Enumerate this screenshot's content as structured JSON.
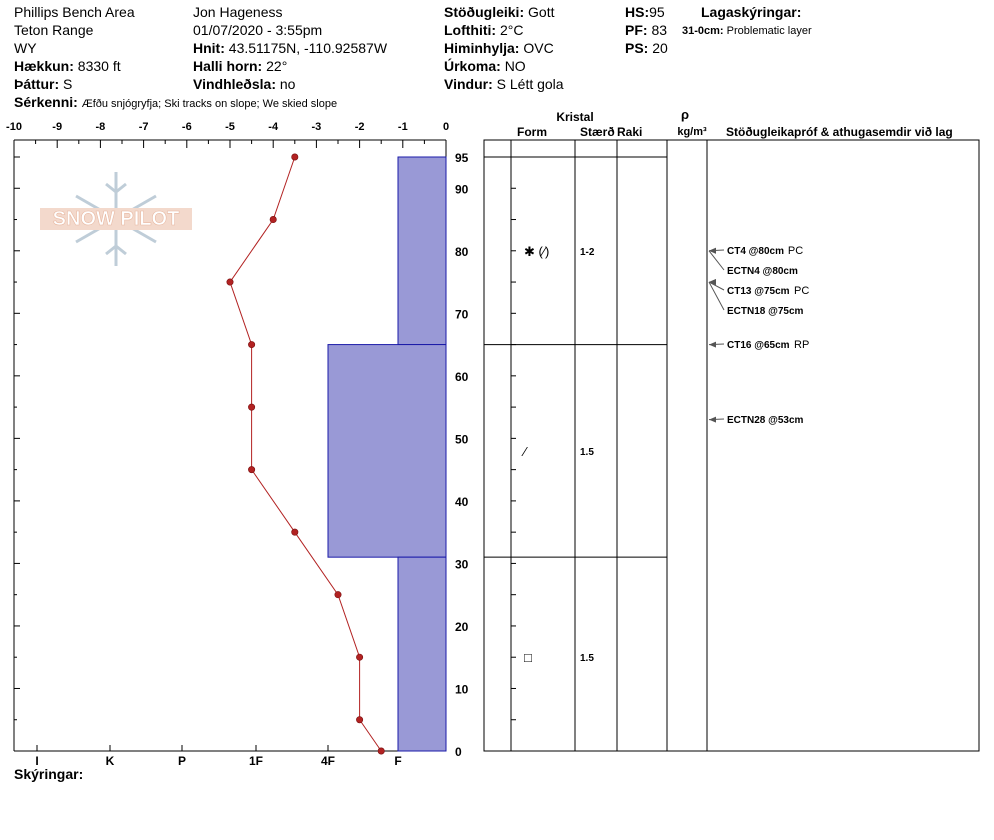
{
  "header": {
    "col1": {
      "location": "Phillips Bench Area",
      "range": "Teton Range",
      "state": "WY",
      "elevation_label": "Hækkun:",
      "elevation_value": "8330 ft",
      "aspect_label": "Þáttur:",
      "aspect_value": "S",
      "features_label": "Sérkenni:",
      "features_value": "Æfðu snjógryfja;  Ski tracks on slope;  We skied slope"
    },
    "col2": {
      "observer": "Jon Hageness",
      "datetime": "01/07/2020 - 3:55pm",
      "coords_label": "Hnit:",
      "coords_value": "43.51175N, -110.92587W",
      "slope_label": "Halli horn:",
      "slope_value": "22°",
      "wind_loading_label": "Vindhleðsla:",
      "wind_loading_value": "no"
    },
    "col3": {
      "stability_label": "Stöðugleiki:",
      "stability_value": "Gott",
      "air_temp_label": "Lofthiti:",
      "air_temp_value": "2°C",
      "sky_label": "Himinhylja:",
      "sky_value": "OVC",
      "precip_label": "Úrkoma:",
      "precip_value": "NO",
      "wind_label": "Vindur:",
      "wind_value": "S  Létt gola"
    },
    "col4": {
      "hs_label": "HS:",
      "hs_value": "95",
      "pf_label": "PF:",
      "pf_value": "83",
      "ps_label": "PS:",
      "ps_value": "20"
    },
    "col5": {
      "layer_notes_label": "Lagaskýringar:",
      "layer_note_range": "31-0cm:",
      "layer_note_text": "Problematic layer"
    }
  },
  "logo_text": "SNOW PILOT",
  "legend_label": "Skýringar:",
  "table_headers": {
    "crystal": "Kristal",
    "form": "Form",
    "size": "Stærð",
    "moisture": "Raki",
    "density_symbol": "ρ",
    "density_unit": "kg/m³",
    "tests": "Stöðugleikapróf & athugasemdir við lag"
  },
  "chart_data": {
    "type": "snow-profile",
    "temp_axis": {
      "ticks": [
        "-10",
        "-9",
        "-8",
        "-7",
        "-6",
        "-5",
        "-4",
        "-3",
        "-2",
        "-1",
        "0"
      ],
      "range": [
        -10,
        0
      ]
    },
    "height_axis": {
      "ticks": [
        "0",
        "10",
        "20",
        "30",
        "40",
        "50",
        "60",
        "70",
        "80",
        "90",
        "95"
      ],
      "range": [
        0,
        95
      ]
    },
    "hardness_axis": {
      "ticks": [
        "I",
        "K",
        "P",
        "1F",
        "4F",
        "F"
      ]
    },
    "temperature_profile": [
      {
        "depth": 95,
        "temp": -3.5
      },
      {
        "depth": 85,
        "temp": -4.0
      },
      {
        "depth": 75,
        "temp": -5.0
      },
      {
        "depth": 65,
        "temp": -4.5
      },
      {
        "depth": 55,
        "temp": -4.5
      },
      {
        "depth": 45,
        "temp": -4.5
      },
      {
        "depth": 35,
        "temp": -3.5
      },
      {
        "depth": 25,
        "temp": -2.5
      },
      {
        "depth": 15,
        "temp": -2.0
      },
      {
        "depth": 5,
        "temp": -2.0
      },
      {
        "depth": 0,
        "temp": -1.5
      }
    ],
    "hardness_layers": [
      {
        "top": 95,
        "bottom": 65,
        "hardness": "F"
      },
      {
        "top": 65,
        "bottom": 31,
        "hardness": "4F"
      },
      {
        "top": 31,
        "bottom": 0,
        "hardness": "F"
      }
    ],
    "layer_crystals": [
      {
        "at": 80,
        "form": "✱ (⁄)",
        "size": "1-2"
      },
      {
        "at": 48,
        "form": "⁄",
        "size": "1.5"
      },
      {
        "at": 15,
        "form": "□",
        "size": "1.5"
      }
    ],
    "layer_boundaries": [
      95,
      65,
      31
    ],
    "stability_tests": [
      {
        "at": 80,
        "code": "CT4 @80cm",
        "note": "PC"
      },
      {
        "at": 80,
        "code": "ECTN4 @80cm",
        "note": ""
      },
      {
        "at": 75,
        "code": "CT13 @75cm",
        "note": "PC"
      },
      {
        "at": 75,
        "code": "ECTN18 @75cm",
        "note": ""
      },
      {
        "at": 65,
        "code": "CT16 @65cm",
        "note": "RP"
      },
      {
        "at": 53,
        "code": "ECTN28 @53cm",
        "note": ""
      }
    ],
    "colors": {
      "hardness_fill": "#9999d6",
      "hardness_stroke": "#1a1aa8",
      "temp_line": "#b22222"
    }
  }
}
